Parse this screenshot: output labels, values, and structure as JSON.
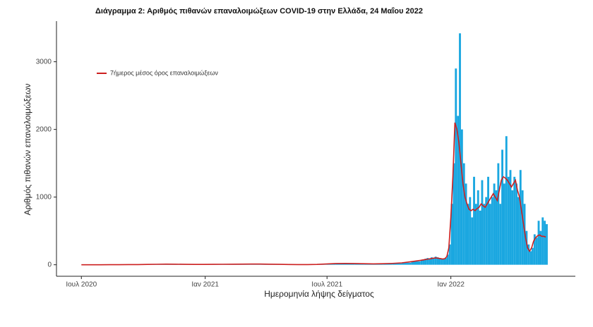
{
  "chart_data": {
    "type": "bar",
    "title": "Διάγραμμα 2: Αριθμός πιθανών επαναλοιμώξεων COVID-19 στην Ελλάδα, 24 Μαΐου 2022",
    "x_label": "Ημερομηνία λήψης δείγματος",
    "y_label": "Αριθμός πιθανών επαναλοιμώξεων",
    "color": "#1aa7e0",
    "x": [
      "2020-07-01",
      "2020-07-15",
      "2020-07-29",
      "2020-08-12",
      "2020-08-26",
      "2020-09-09",
      "2020-09-23",
      "2020-10-07",
      "2020-10-21",
      "2020-11-04",
      "2020-11-18",
      "2020-12-02",
      "2020-12-16",
      "2020-12-30",
      "2021-01-13",
      "2021-01-27",
      "2021-02-10",
      "2021-02-24",
      "2021-03-10",
      "2021-03-24",
      "2021-04-07",
      "2021-04-21",
      "2021-05-05",
      "2021-05-19",
      "2021-06-02",
      "2021-06-16",
      "2021-06-30",
      "2021-07-14",
      "2021-07-28",
      "2021-08-11",
      "2021-08-25",
      "2021-09-08",
      "2021-09-22",
      "2021-10-06",
      "2021-10-20",
      "2021-11-03",
      "2021-11-17",
      "2021-11-20",
      "2021-11-23",
      "2021-11-26",
      "2021-11-29",
      "2021-12-02",
      "2021-12-05",
      "2021-12-08",
      "2021-12-11",
      "2021-12-14",
      "2021-12-17",
      "2021-12-20",
      "2021-12-23",
      "2021-12-26",
      "2021-12-29",
      "2022-01-01",
      "2022-01-04",
      "2022-01-07",
      "2022-01-10",
      "2022-01-13",
      "2022-01-16",
      "2022-01-19",
      "2022-01-22",
      "2022-01-25",
      "2022-01-28",
      "2022-01-31",
      "2022-02-03",
      "2022-02-06",
      "2022-02-09",
      "2022-02-12",
      "2022-02-15",
      "2022-02-18",
      "2022-02-21",
      "2022-02-24",
      "2022-02-27",
      "2022-03-02",
      "2022-03-05",
      "2022-03-08",
      "2022-03-11",
      "2022-03-14",
      "2022-03-17",
      "2022-03-20",
      "2022-03-23",
      "2022-03-26",
      "2022-03-29",
      "2022-04-01",
      "2022-04-04",
      "2022-04-07",
      "2022-04-10",
      "2022-04-13",
      "2022-04-16",
      "2022-04-19",
      "2022-04-22",
      "2022-04-25",
      "2022-04-28",
      "2022-05-01",
      "2022-05-04",
      "2022-05-07",
      "2022-05-10",
      "2022-05-13",
      "2022-05-16",
      "2022-05-19",
      "2022-05-22"
    ],
    "values": [
      0,
      0,
      0,
      1,
      1,
      2,
      3,
      5,
      8,
      10,
      8,
      6,
      5,
      5,
      6,
      7,
      8,
      10,
      12,
      10,
      8,
      6,
      4,
      3,
      3,
      5,
      15,
      20,
      20,
      18,
      15,
      12,
      15,
      20,
      30,
      50,
      70,
      80,
      90,
      100,
      90,
      110,
      100,
      120,
      110,
      100,
      90,
      80,
      100,
      150,
      300,
      900,
      1500,
      2900,
      2200,
      3420,
      2000,
      1500,
      1200,
      900,
      1000,
      700,
      1300,
      900,
      1100,
      800,
      1250,
      900,
      1000,
      1300,
      900,
      1000,
      1200,
      1100,
      1500,
      900,
      1700,
      1200,
      1900,
      1300,
      1400,
      1100,
      1300,
      1200,
      1000,
      1400,
      1100,
      900,
      500,
      300,
      200,
      250,
      450,
      400,
      650,
      500,
      700,
      650,
      600
    ],
    "line": {
      "name": "7ήμερος μέσος όρος επαναλοιμώξεων",
      "color": "#cc1f1f",
      "values": [
        0,
        0,
        0,
        1,
        1,
        2,
        3,
        5,
        7,
        9,
        8,
        6,
        5,
        5,
        6,
        7,
        8,
        9,
        10,
        10,
        8,
        6,
        4,
        3,
        3,
        5,
        12,
        18,
        19,
        18,
        15,
        13,
        15,
        20,
        28,
        45,
        65,
        70,
        75,
        80,
        85,
        90,
        95,
        100,
        100,
        95,
        90,
        85,
        90,
        120,
        250,
        700,
        1300,
        2100,
        2000,
        1800,
        1500,
        1200,
        1000,
        900,
        820,
        800,
        820,
        800,
        830,
        850,
        900,
        870,
        850,
        900,
        950,
        1000,
        1050,
        1000,
        950,
        1100,
        1250,
        1300,
        1280,
        1250,
        1200,
        1150,
        1200,
        1250,
        1100,
        1000,
        800,
        600,
        400,
        250,
        200,
        250,
        350,
        400,
        430,
        440,
        420,
        420,
        410
      ]
    },
    "xlim": [
      "2020-05-25",
      "2022-07-05"
    ],
    "xticks": [
      {
        "value": "2020-07-01",
        "label": "Ιουλ 2020"
      },
      {
        "value": "2021-01-01",
        "label": "Ιαν 2021"
      },
      {
        "value": "2021-07-01",
        "label": "Ιουλ 2021"
      },
      {
        "value": "2022-01-01",
        "label": "Ιαν 2022"
      }
    ],
    "ylim": [
      -170,
      3600
    ],
    "yticks": [
      0,
      1000,
      2000,
      3000
    ],
    "grid": false,
    "legend": "top-left"
  }
}
